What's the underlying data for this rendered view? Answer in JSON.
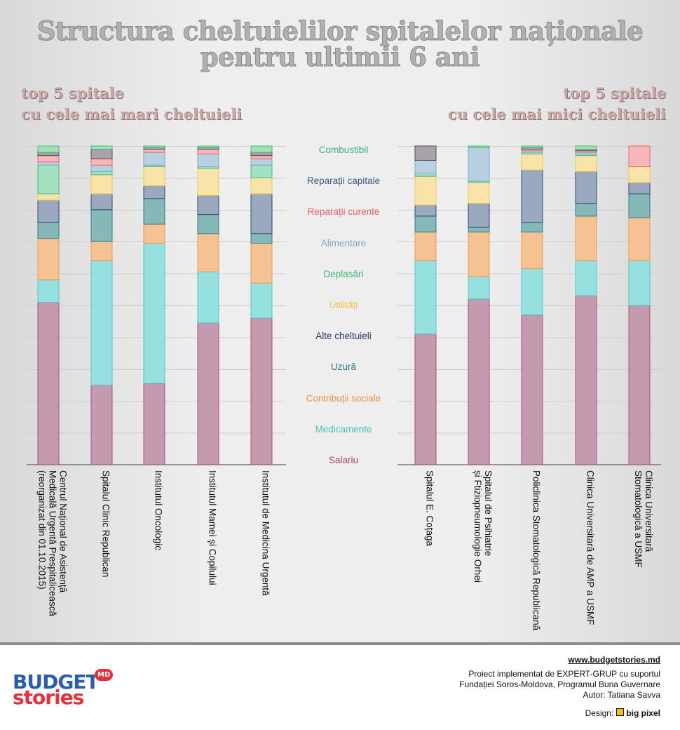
{
  "chart_data": {
    "type": "bar",
    "stacked": true,
    "title": "Structura cheltuielilor spitalelor naționale\npentru ultimii 6 ani",
    "ylim": [
      0,
      100
    ],
    "groups": [
      {
        "subtitle": "top 5 spitale\ncu cele mai mari cheltuieli",
        "categories": [
          "Centrul Național de Asistență\nMedicală Urgentă Prespitalicească\n(reorganizat din 01.10.2015)",
          "Spitalul Clinic Republican",
          "Institutul Oncologic",
          "Institutul Mamei și Copilului",
          "Institutul de Medicina Urgentă"
        ]
      },
      {
        "subtitle": "top 5 spitale\ncu cele mai mici cheltuieli",
        "categories": [
          "Spitalul E. Coțaga",
          "Spitalul de Psihiatrie\nși Ftiziopneumologie Orhei",
          "Policlinica Stomatologică Republicană",
          "Clinica Universitară de AMP a USMF",
          "Clinica Universitară\nStomatologică a USMF"
        ]
      }
    ],
    "series": [
      {
        "name": "Salariu",
        "color": "#c49aae",
        "border_color": "#a8507a",
        "label_color": "#a8406e",
        "values": [
          51,
          25,
          25.5,
          44.5,
          46,
          41,
          52,
          47,
          53,
          50
        ]
      },
      {
        "name": "Medicamente",
        "color": "#97e0e0",
        "border_color": "#4cc8c8",
        "label_color": "#3cc4c4",
        "values": [
          7,
          39,
          44,
          16,
          11,
          23,
          7,
          14.5,
          11,
          14
        ]
      },
      {
        "name": "Contribuții sociale",
        "color": "#f5c294",
        "border_color": "#f09a48",
        "label_color": "#f0903c",
        "values": [
          13,
          6,
          6,
          12,
          12.5,
          9,
          14,
          11.5,
          14,
          13.5
        ]
      },
      {
        "name": "Uzură",
        "color": "#86b8b8",
        "border_color": "#2e7d8a",
        "label_color": "#2a7a8a",
        "values": [
          5,
          10,
          8,
          6,
          3,
          5,
          1.5,
          3,
          4,
          7.5
        ]
      },
      {
        "name": "Alte cheltuieli",
        "color": "#9ba9c0",
        "border_color": "#2c4a70",
        "label_color": "#2c3e64",
        "values": [
          7,
          5,
          4,
          6,
          12.5,
          3.5,
          7.5,
          16.5,
          10,
          3.5
        ]
      },
      {
        "name": "Utilități",
        "color": "#f8e3a8",
        "border_color": "#f0c850",
        "label_color": "#f0c448",
        "values": [
          2,
          6,
          6,
          8.5,
          5,
          9,
          6.5,
          5,
          5,
          5
        ]
      },
      {
        "name": "Deplasări",
        "color": "#a2e2c2",
        "border_color": "#40bc80",
        "label_color": "#3cb87c",
        "values": [
          9,
          1,
          0.5,
          0.5,
          4,
          1,
          0.5,
          0.5,
          0.5,
          0
        ]
      },
      {
        "name": "Alimentare",
        "color": "#b9cfe2",
        "border_color": "#80a8cc",
        "label_color": "#7ea6cc",
        "values": [
          1,
          2,
          4,
          4,
          2,
          4,
          10.5,
          0.5,
          0.5,
          0
        ]
      },
      {
        "name": "Reparații curente",
        "color": "#f6b8b8",
        "border_color": "#ec6a6a",
        "label_color": "#e86060",
        "values": [
          2,
          2,
          1,
          1.5,
          1,
          0,
          0,
          0.5,
          0.5,
          6.5
        ]
      },
      {
        "name": "Reparații capitale",
        "color": "#aaa2aa",
        "border_color": "#5a4a5a",
        "label_color": "#3a5a84",
        "values": [
          1,
          3,
          0.5,
          0.5,
          1,
          4.5,
          0,
          0.5,
          0.5,
          0
        ]
      },
      {
        "name": "Combustibil",
        "color": "#a4e2b4",
        "border_color": "#40bc80",
        "label_color": "#3cb47c",
        "values": [
          2,
          1,
          0.5,
          0.5,
          2,
          0,
          0.5,
          0.5,
          1,
          0
        ]
      }
    ]
  },
  "footer": {
    "logo_top": "BUDGET",
    "logo_badge": "MD",
    "logo_bottom": "stories",
    "url": "www.budgetstories.md",
    "credits": [
      "Proiect implementat de EXPERT-GRUP cu suportul",
      "Fundației Soros-Moldova, Programul Buna Guvernare",
      "Autor: Tatiana Savva"
    ],
    "design_label": "Design:",
    "design_brand": "big pixel"
  }
}
